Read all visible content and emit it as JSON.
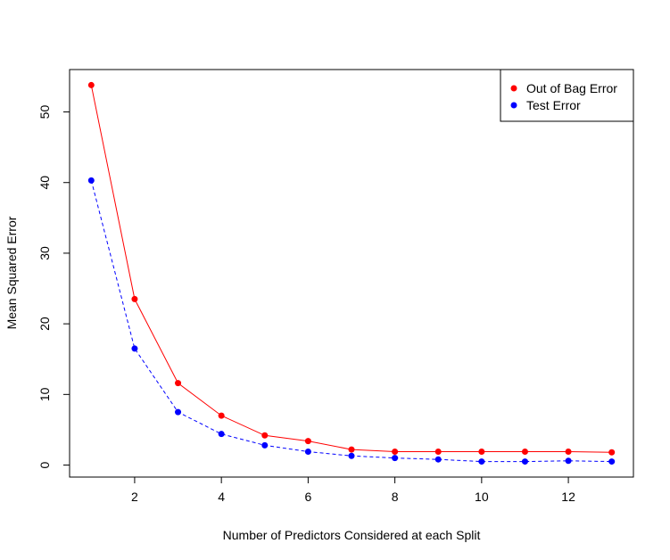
{
  "chart_data": {
    "type": "line",
    "title": "",
    "xlabel": "Number of Predictors Considered at each Split",
    "ylabel": "Mean Squared Error",
    "xlim": [
      0.5,
      13.5
    ],
    "ylim": [
      -1.7,
      56
    ],
    "x_ticks": [
      2,
      4,
      6,
      8,
      10,
      12
    ],
    "y_ticks": [
      0,
      10,
      20,
      30,
      40,
      50
    ],
    "x": [
      1,
      2,
      3,
      4,
      5,
      6,
      7,
      8,
      9,
      10,
      11,
      12,
      13
    ],
    "series": [
      {
        "name": "Out of Bag Error",
        "color": "#ff0000",
        "line_style": "solid",
        "marker": "filled-circle",
        "values": [
          53.8,
          23.5,
          11.6,
          7.0,
          4.2,
          3.4,
          2.2,
          1.9,
          1.9,
          1.9,
          1.9,
          1.9,
          1.8
        ]
      },
      {
        "name": "Test Error",
        "color": "#0000ff",
        "line_style": "dashed",
        "marker": "filled-circle",
        "values": [
          40.3,
          16.5,
          7.5,
          4.4,
          2.8,
          1.9,
          1.3,
          1.0,
          0.8,
          0.5,
          0.5,
          0.6,
          0.5
        ]
      }
    ],
    "legend_position": "top-right",
    "grid": false
  }
}
